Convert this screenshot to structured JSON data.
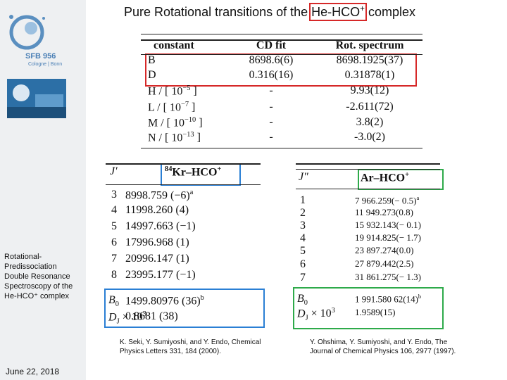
{
  "title": {
    "before": "Pure Rotational transitions of the ",
    "highlight": "He-HCO",
    "highlight_sup": "+",
    "after": " complex"
  },
  "sidebar": {
    "logo_text": "SFB 956",
    "logo_subtext": "Cologne | Bonn",
    "description": "Rotational-Predissociation Double Resonance Spectroscopy of the He-HCO⁺ complex",
    "date": "June 22, 2018"
  },
  "table1": {
    "headers": [
      "constant",
      "CD fit",
      "Rot. spectrum"
    ],
    "rows": [
      {
        "label": "B",
        "cd": "8698.6(6)",
        "rot": "8698.1925(37)"
      },
      {
        "label": "D",
        "cd": "0.316(16)",
        "rot": "0.31878(1)"
      },
      {
        "label": "H / [ 10",
        "exponent": "−5",
        "close": "]",
        "cd": "-",
        "rot": "9.93(12)"
      },
      {
        "label": "L / [ 10",
        "exponent": "−7",
        "close": "]",
        "cd": "-",
        "rot": "-2.611(72)"
      },
      {
        "label": "M / [ 10",
        "exponent": "−10",
        "close": "]",
        "cd": "-",
        "rot": "3.8(2)"
      },
      {
        "label": "N / [ 10",
        "exponent": "−13",
        "close": "]",
        "cd": "-",
        "rot": "-3.0(2)"
      }
    ]
  },
  "table2": {
    "j_header": "J′",
    "species_sup": "84",
    "species": "Kr–HCO",
    "species_charge": "+",
    "rows": [
      {
        "j": "3",
        "value": "8998.759 (−6)",
        "note": "a"
      },
      {
        "j": "4",
        "value": "11998.260 (4)"
      },
      {
        "j": "5",
        "value": "14997.663 (−1)"
      },
      {
        "j": "6",
        "value": "17996.968 (1)"
      },
      {
        "j": "7",
        "value": "20996.147 (1)"
      },
      {
        "j": "8",
        "value": "23995.177 (−1)"
      }
    ],
    "constants": [
      {
        "symbol": "B",
        "sub": "0",
        "value": "1499.80976 (36)",
        "note": "b"
      },
      {
        "symbol": "D",
        "sub": "J",
        "factor": "× 10",
        "factor_exp": "3",
        "value": "0.8681 (38)"
      }
    ],
    "reference": "K. Seki, Y. Sumiyoshi, and Y. Endo, Chemical Physics Letters 331, 184 (2000)."
  },
  "table3": {
    "j_header": "J″",
    "species": "Ar–HCO",
    "species_charge": "+",
    "rows": [
      {
        "j": "1",
        "value": "7 966.259(− 0.5)",
        "note": "a"
      },
      {
        "j": "2",
        "value": "11 949.273(0.8)"
      },
      {
        "j": "3",
        "value": "15 932.143(− 0.1)"
      },
      {
        "j": "4",
        "value": "19 914.825(− 1.7)"
      },
      {
        "j": "5",
        "value": "23 897.274(0.0)"
      },
      {
        "j": "6",
        "value": "27 879.442(2.5)"
      },
      {
        "j": "7",
        "value": "31 861.275(− 1.3)"
      }
    ],
    "constants": [
      {
        "symbol": "B",
        "sub": "0",
        "value": "1 991.580 62(14)",
        "note": "b"
      },
      {
        "symbol": "D",
        "sub": "J",
        "factor": "× 10",
        "factor_exp": "3",
        "value": "1.9589(15)"
      }
    ],
    "reference": "Y. Ohshima, Y. Sumiyoshi, and Y. Endo, The Journal of Chemical Physics 106, 2977 (1997)."
  }
}
